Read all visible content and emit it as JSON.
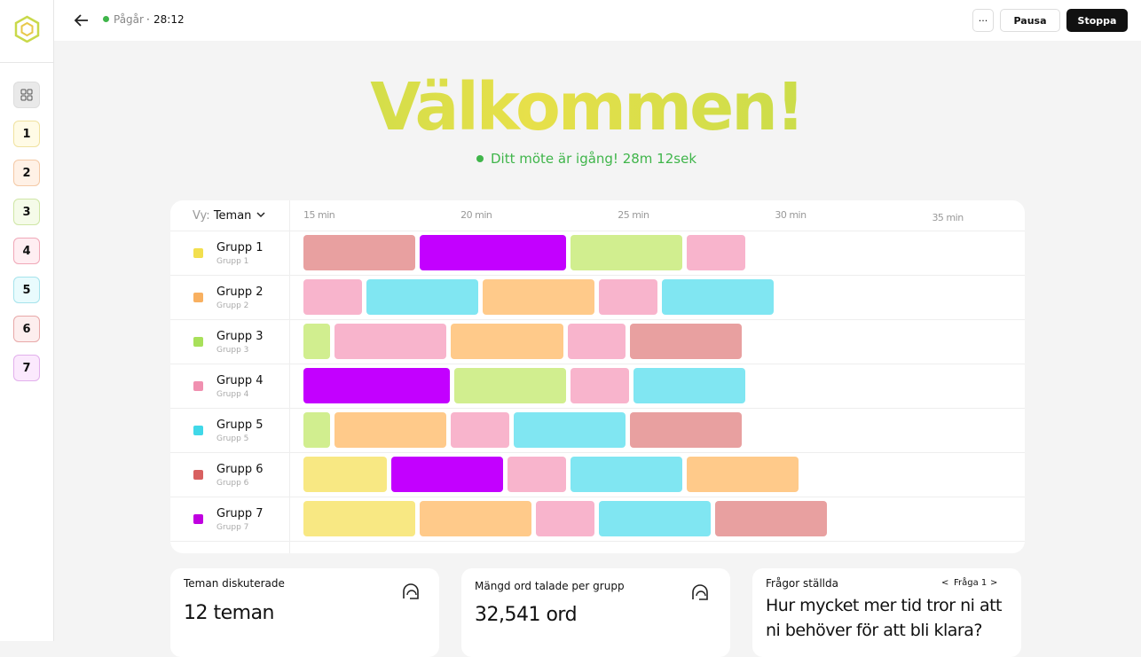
{
  "topbar": {
    "status": "Pågår",
    "separator": "·",
    "elapsed": "28:12",
    "more": "···",
    "pause": "Pausa",
    "stop": "Stoppa"
  },
  "sidebar": {
    "items": [
      "1",
      "2",
      "3",
      "4",
      "5",
      "6",
      "7"
    ]
  },
  "hero": {
    "title": "Välkommen!",
    "subtitle": "Ditt möte är igång! 28m 12sek"
  },
  "timeline": {
    "view_label": "Vy:",
    "view_value": "Teman",
    "xlim": [
      15,
      37.5
    ],
    "xticks": [
      {
        "value": 15,
        "label": "15 min"
      },
      {
        "value": 20,
        "label": "20 min"
      },
      {
        "value": 25,
        "label": "25 min"
      },
      {
        "value": 30,
        "label": "30 min"
      },
      {
        "value": 35,
        "label": "35 min"
      }
    ],
    "groups": [
      {
        "name": "Grupp 1",
        "subtitle": "Grupp 1",
        "color": "#f2df4e",
        "segments": [
          {
            "minutes": 3.7,
            "color": "#e8a0a0"
          },
          {
            "minutes": 4.8,
            "color": "#c300ff"
          },
          {
            "minutes": 3.7,
            "color": "#d1ee8f"
          },
          {
            "minutes": 2.0,
            "color": "#f8b4cc"
          }
        ]
      },
      {
        "name": "Grupp 2",
        "subtitle": "Grupp 2",
        "color": "#f8b060",
        "segments": [
          {
            "minutes": 2.0,
            "color": "#f8b4cc"
          },
          {
            "minutes": 3.7,
            "color": "#80e6f2"
          },
          {
            "minutes": 3.7,
            "color": "#ffca8a"
          },
          {
            "minutes": 2.0,
            "color": "#f8b4cc"
          },
          {
            "minutes": 3.7,
            "color": "#80e6f2"
          }
        ]
      },
      {
        "name": "Grupp 3",
        "subtitle": "Grupp 3",
        "color": "#a8e05a",
        "segments": [
          {
            "minutes": 1.0,
            "color": "#d1ee8f"
          },
          {
            "minutes": 3.7,
            "color": "#f8b4cc"
          },
          {
            "minutes": 3.7,
            "color": "#ffca8a"
          },
          {
            "minutes": 2.0,
            "color": "#f8b4cc"
          },
          {
            "minutes": 3.7,
            "color": "#e8a0a0"
          }
        ]
      },
      {
        "name": "Grupp 4",
        "subtitle": "Grupp 4",
        "color": "#f090b0",
        "segments": [
          {
            "minutes": 4.8,
            "color": "#c300ff"
          },
          {
            "minutes": 3.7,
            "color": "#d1ee8f"
          },
          {
            "minutes": 2.0,
            "color": "#f8b4cc"
          },
          {
            "minutes": 3.7,
            "color": "#80e6f2"
          }
        ]
      },
      {
        "name": "Grupp 5",
        "subtitle": "Grupp 5",
        "color": "#40d8e8",
        "segments": [
          {
            "minutes": 1.0,
            "color": "#d1ee8f"
          },
          {
            "minutes": 3.7,
            "color": "#ffca8a"
          },
          {
            "minutes": 2.0,
            "color": "#f8b4cc"
          },
          {
            "minutes": 3.7,
            "color": "#80e6f2"
          },
          {
            "minutes": 3.7,
            "color": "#e8a0a0"
          }
        ]
      },
      {
        "name": "Grupp 6",
        "subtitle": "Grupp 6",
        "color": "#d86060",
        "segments": [
          {
            "minutes": 2.8,
            "color": "#f8e883"
          },
          {
            "minutes": 3.7,
            "color": "#c300ff"
          },
          {
            "minutes": 2.0,
            "color": "#f8b4cc"
          },
          {
            "minutes": 3.7,
            "color": "#80e6f2"
          },
          {
            "minutes": 3.7,
            "color": "#ffca8a"
          }
        ]
      },
      {
        "name": "Grupp 7",
        "subtitle": "Grupp 7",
        "color": "#c000e0",
        "segments": [
          {
            "minutes": 3.7,
            "color": "#f8e883"
          },
          {
            "minutes": 3.7,
            "color": "#ffca8a"
          },
          {
            "minutes": 2.0,
            "color": "#f8b4cc"
          },
          {
            "minutes": 3.7,
            "color": "#80e6f2"
          },
          {
            "minutes": 3.7,
            "color": "#e8a0a0"
          }
        ]
      }
    ]
  },
  "cards": {
    "topics": {
      "title": "Teman diskuterade",
      "value": "12 teman"
    },
    "words": {
      "title": "Mängd ord talade per grupp",
      "value": "32,541 ord"
    },
    "questions": {
      "title": "Frågor ställda",
      "prev": "<",
      "nav": "Fråga 1",
      "next": ">",
      "question": "Hur mycket mer tid tror ni att ni behöver för att bli klara?"
    }
  }
}
